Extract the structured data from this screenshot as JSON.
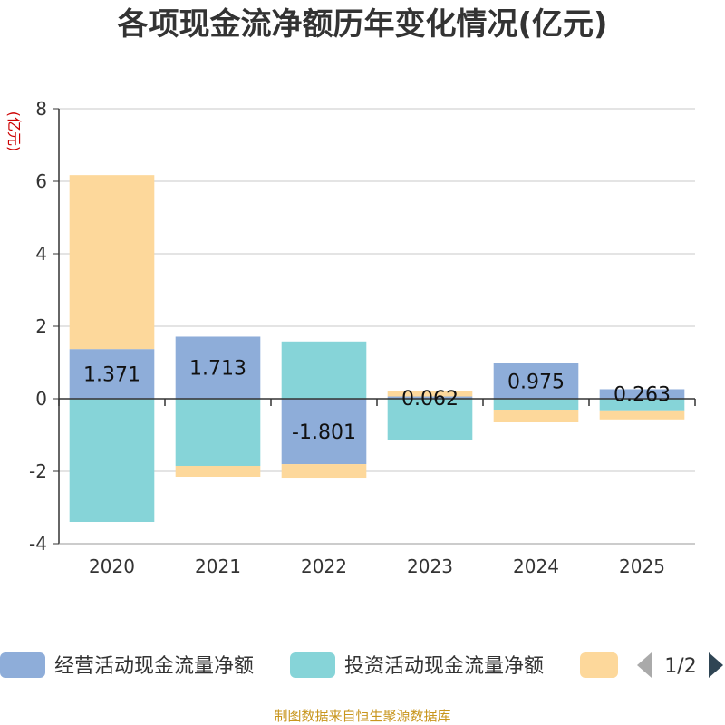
{
  "chart_data": {
    "type": "bar",
    "stacked": true,
    "title": "各项现金流净额历年变化情况(亿元)",
    "ylabel": "(亿元)",
    "xlabel": "",
    "categories": [
      "2020",
      "2021",
      "2022",
      "2023",
      "2024",
      "2025"
    ],
    "ylim": [
      -4,
      8
    ],
    "yticks": [
      8,
      6,
      4,
      2,
      0,
      -2,
      -4
    ],
    "grid": true,
    "series": [
      {
        "name": "经营活动现金流量净额",
        "color": "#8eadd9",
        "values": [
          1.371,
          1.713,
          -1.801,
          0.062,
          0.975,
          0.263
        ],
        "labels": [
          "1.371",
          "1.713",
          "-1.801",
          "0.062",
          "0.975",
          "0.263"
        ]
      },
      {
        "name": "投资活动现金流量净额",
        "color": "#86d4d8",
        "values": [
          -3.4,
          -1.85,
          1.58,
          -1.15,
          -0.3,
          -0.32
        ]
      },
      {
        "name": "",
        "color": "#fdd89b",
        "values": [
          4.8,
          -0.3,
          -0.4,
          0.15,
          -0.35,
          -0.25
        ]
      }
    ],
    "legend": {
      "position": "bottom",
      "page": "1/2"
    }
  },
  "source": "制图数据来自恒生聚源数据库"
}
